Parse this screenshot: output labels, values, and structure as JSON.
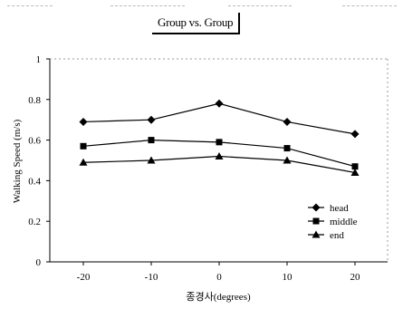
{
  "chart_data": {
    "type": "line",
    "title": "Group vs. Group",
    "xlabel": "종경사(degrees)",
    "ylabel": "Walking Speed (m/s)",
    "categories": [
      "-20",
      "-10",
      "0",
      "10",
      "20"
    ],
    "x": [
      -20,
      -10,
      0,
      10,
      20
    ],
    "ylim": [
      0,
      1
    ],
    "yticks": [
      "0",
      "0.2",
      "0.4",
      "0.6",
      "0.8",
      "1"
    ],
    "grid": false,
    "legend_position": "bottom-right",
    "series": [
      {
        "name": "head",
        "marker": "diamond",
        "values": [
          0.69,
          0.7,
          0.78,
          0.69,
          0.63
        ]
      },
      {
        "name": "middle",
        "marker": "square",
        "values": [
          0.57,
          0.6,
          0.59,
          0.56,
          0.47
        ]
      },
      {
        "name": "end",
        "marker": "triangle",
        "values": [
          0.49,
          0.5,
          0.52,
          0.5,
          0.44
        ]
      }
    ],
    "colors": {
      "line": "#000000",
      "axis": "#000000",
      "background": "#ffffff"
    }
  }
}
